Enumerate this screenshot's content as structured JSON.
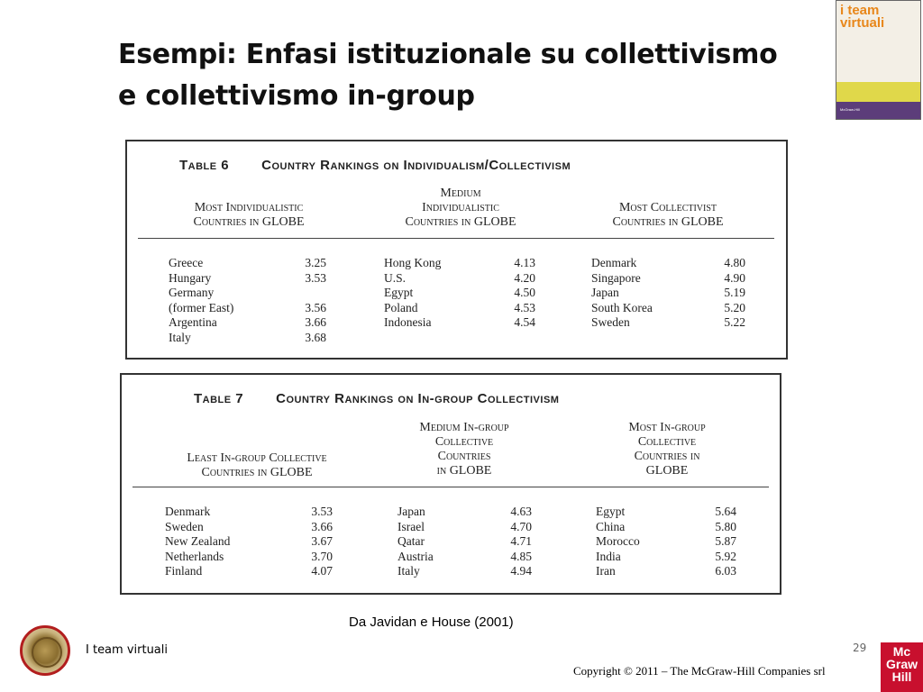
{
  "title": {
    "line1": "Esempi: Enfasi istituzionale su collettivismo",
    "line2": "e collettivismo in-group"
  },
  "cover": {
    "title_line1": "i team",
    "title_line2": "virtuali",
    "publisher": "McGraw-Hill"
  },
  "table6": {
    "number": "Table 6",
    "title": "Country Rankings on Individualism/Collectivism",
    "headers": [
      [
        "Most Individualistic",
        "Countries in GLOBE"
      ],
      [
        "Medium",
        "Individualistic",
        "Countries in GLOBE"
      ],
      [
        "Most Collectivist",
        "Countries in GLOBE"
      ]
    ],
    "columns": [
      [
        {
          "name": "Greece",
          "value": "3.25"
        },
        {
          "name": "Hungary",
          "value": "3.53"
        },
        {
          "name": "Germany",
          "value": ""
        },
        {
          "name": "(former East)",
          "value": "3.56"
        },
        {
          "name": "Argentina",
          "value": "3.66"
        },
        {
          "name": "Italy",
          "value": "3.68"
        }
      ],
      [
        {
          "name": "Hong Kong",
          "value": "4.13"
        },
        {
          "name": "U.S.",
          "value": "4.20"
        },
        {
          "name": "Egypt",
          "value": "4.50"
        },
        {
          "name": "Poland",
          "value": "4.53"
        },
        {
          "name": "Indonesia",
          "value": "4.54"
        }
      ],
      [
        {
          "name": "Denmark",
          "value": "4.80"
        },
        {
          "name": "Singapore",
          "value": "4.90"
        },
        {
          "name": "Japan",
          "value": "5.19"
        },
        {
          "name": "South Korea",
          "value": "5.20"
        },
        {
          "name": "Sweden",
          "value": "5.22"
        }
      ]
    ]
  },
  "table7": {
    "number": "Table 7",
    "title": "Country Rankings on In-group Collectivism",
    "headers": [
      [
        "Least In-group Collective",
        "Countries in GLOBE"
      ],
      [
        "Medium In-group",
        "Collective",
        "Countries",
        "in GLOBE"
      ],
      [
        "Most In-group",
        "Collective",
        "Countries in",
        "GLOBE"
      ]
    ],
    "columns": [
      [
        {
          "name": "Denmark",
          "value": "3.53"
        },
        {
          "name": "Sweden",
          "value": "3.66"
        },
        {
          "name": "New Zealand",
          "value": "3.67"
        },
        {
          "name": "Netherlands",
          "value": "3.70"
        },
        {
          "name": "Finland",
          "value": "4.07"
        }
      ],
      [
        {
          "name": "Japan",
          "value": "4.63"
        },
        {
          "name": "Israel",
          "value": "4.70"
        },
        {
          "name": "Qatar",
          "value": "4.71"
        },
        {
          "name": "Austria",
          "value": "4.85"
        },
        {
          "name": "Italy",
          "value": "4.94"
        }
      ],
      [
        {
          "name": "Egypt",
          "value": "5.64"
        },
        {
          "name": "China",
          "value": "5.80"
        },
        {
          "name": "Morocco",
          "value": "5.87"
        },
        {
          "name": "India",
          "value": "5.92"
        },
        {
          "name": "Iran",
          "value": "6.03"
        }
      ]
    ]
  },
  "source": "Da Javidan e House (2001)",
  "footer": {
    "label": "I team virtuali",
    "page_number": "29",
    "copyright": "Copyright © 2011 – The McGraw-Hill Companies srl"
  },
  "logo": {
    "lines": [
      "Mc",
      "Graw",
      "Hill"
    ]
  }
}
